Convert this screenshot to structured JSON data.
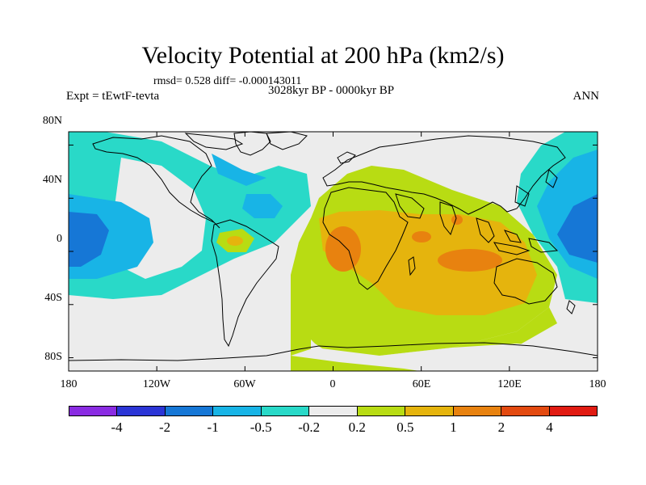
{
  "title": "Velocity Potential at 200 hPa (km2/s)",
  "stats": "rmsd= 0.528 diff= -0.000143011",
  "experiment": "Expt = tEwtF-tevta",
  "period": "3028kyr BP - 0000kyr BP",
  "season": "ANN",
  "lat_labels": [
    "80N",
    "40N",
    "0",
    "40S",
    "80S"
  ],
  "lon_labels": [
    "180",
    "120W",
    "60W",
    "0",
    "60E",
    "120E",
    "180"
  ],
  "colorbar": {
    "colors": [
      "#8a2be2",
      "#2b35d6",
      "#1677d6",
      "#18b4e6",
      "#29d9c8",
      "#ececec",
      "#b8dc13",
      "#e5b40d",
      "#e8820f",
      "#e34a10",
      "#e11b12"
    ],
    "labels": [
      "-4",
      "-2",
      "-1",
      "-0.5",
      "-0.2",
      "0.2",
      "0.5",
      "1",
      "2",
      "4"
    ]
  }
}
